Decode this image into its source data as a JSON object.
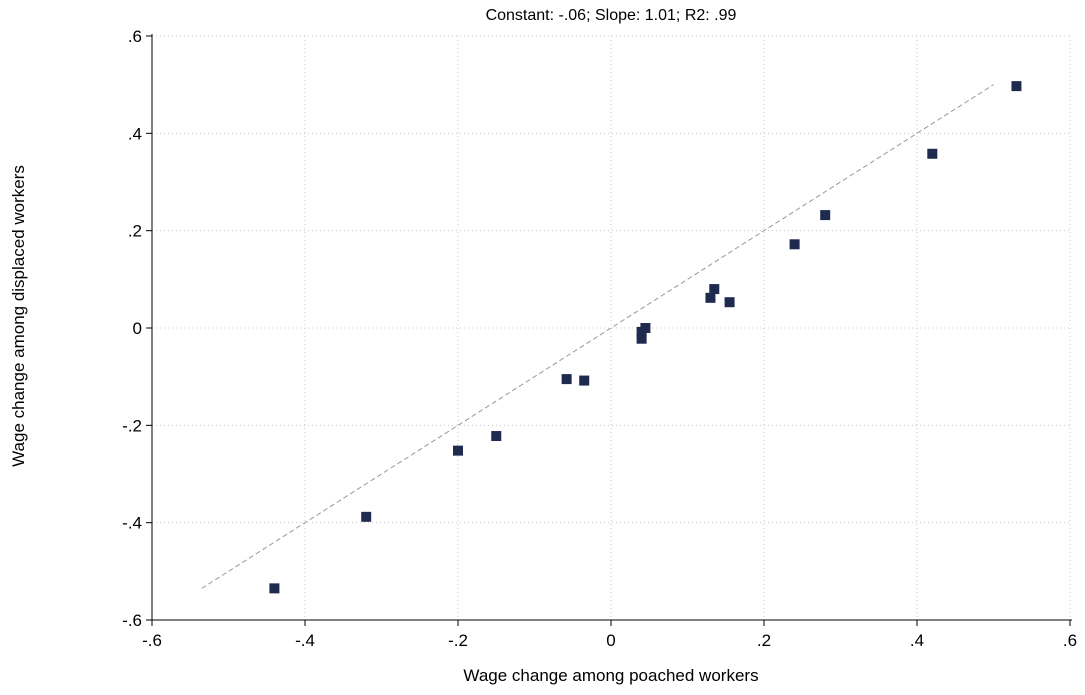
{
  "chart_data": {
    "type": "scatter",
    "title": "Constant: -.06; Slope: 1.01; R2: .99",
    "xlabel": "Wage change among poached workers",
    "ylabel": "Wage change among displaced workers",
    "xlim": [
      -0.6,
      0.6
    ],
    "ylim": [
      -0.6,
      0.6
    ],
    "xticks": [
      -0.6,
      -0.4,
      -0.2,
      0,
      0.2,
      0.4,
      0.6
    ],
    "xtick_labels": [
      "-.6",
      "-.4",
      "-.2",
      "0",
      ".2",
      ".4",
      ".6"
    ],
    "yticks": [
      -0.6,
      -0.4,
      -0.2,
      0,
      0.2,
      0.4,
      0.6
    ],
    "ytick_labels": [
      "-.6",
      "-.4",
      "-.2",
      "0",
      ".2",
      ".4",
      ".6"
    ],
    "grid": true,
    "series": [
      {
        "color": "#1f2a4f",
        "marker": "square",
        "points": [
          [
            -0.44,
            -0.535
          ],
          [
            -0.32,
            -0.388
          ],
          [
            -0.2,
            -0.252
          ],
          [
            -0.15,
            -0.222
          ],
          [
            -0.058,
            -0.105
          ],
          [
            -0.035,
            -0.108
          ],
          [
            0.04,
            -0.022
          ],
          [
            0.04,
            -0.008
          ],
          [
            0.045,
            0.0
          ],
          [
            0.13,
            0.062
          ],
          [
            0.135,
            0.08
          ],
          [
            0.155,
            0.053
          ],
          [
            0.24,
            0.172
          ],
          [
            0.28,
            0.232
          ],
          [
            0.42,
            0.358
          ],
          [
            0.53,
            0.497
          ]
        ]
      }
    ],
    "reference_line": {
      "style": "dashed",
      "color": "#999999",
      "x": [
        -0.535,
        0.5
      ],
      "y": [
        -0.535,
        0.5
      ]
    }
  }
}
